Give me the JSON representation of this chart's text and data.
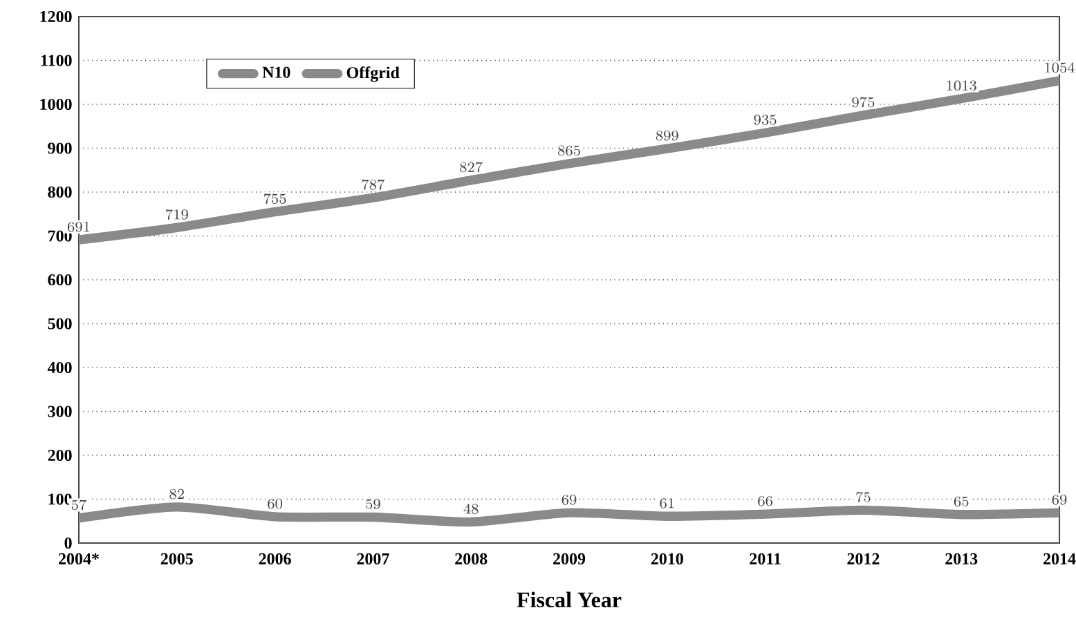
{
  "chart_data": {
    "type": "line",
    "xlabel": "Fiscal Year",
    "categories": [
      "2004*",
      "2005",
      "2006",
      "2007",
      "2008",
      "2009",
      "2010",
      "2011",
      "2012",
      "2013",
      "2014"
    ],
    "series": [
      {
        "name": "N10",
        "color": "#8a8a8a",
        "values": [
          691,
          719,
          755,
          787,
          827,
          865,
          899,
          935,
          975,
          1013,
          1054
        ]
      },
      {
        "name": "Offgrid",
        "color": "#8a8a8a",
        "values": [
          57,
          82,
          60,
          59,
          48,
          69,
          61,
          66,
          75,
          65,
          69
        ]
      }
    ],
    "ylim": [
      0,
      1200
    ],
    "yticks": [
      0,
      100,
      200,
      300,
      400,
      500,
      600,
      700,
      800,
      900,
      1000,
      1100,
      1200
    ],
    "grid": "y",
    "legend": "top left",
    "data_labels": true,
    "marker": "none",
    "line_style": "solid"
  }
}
